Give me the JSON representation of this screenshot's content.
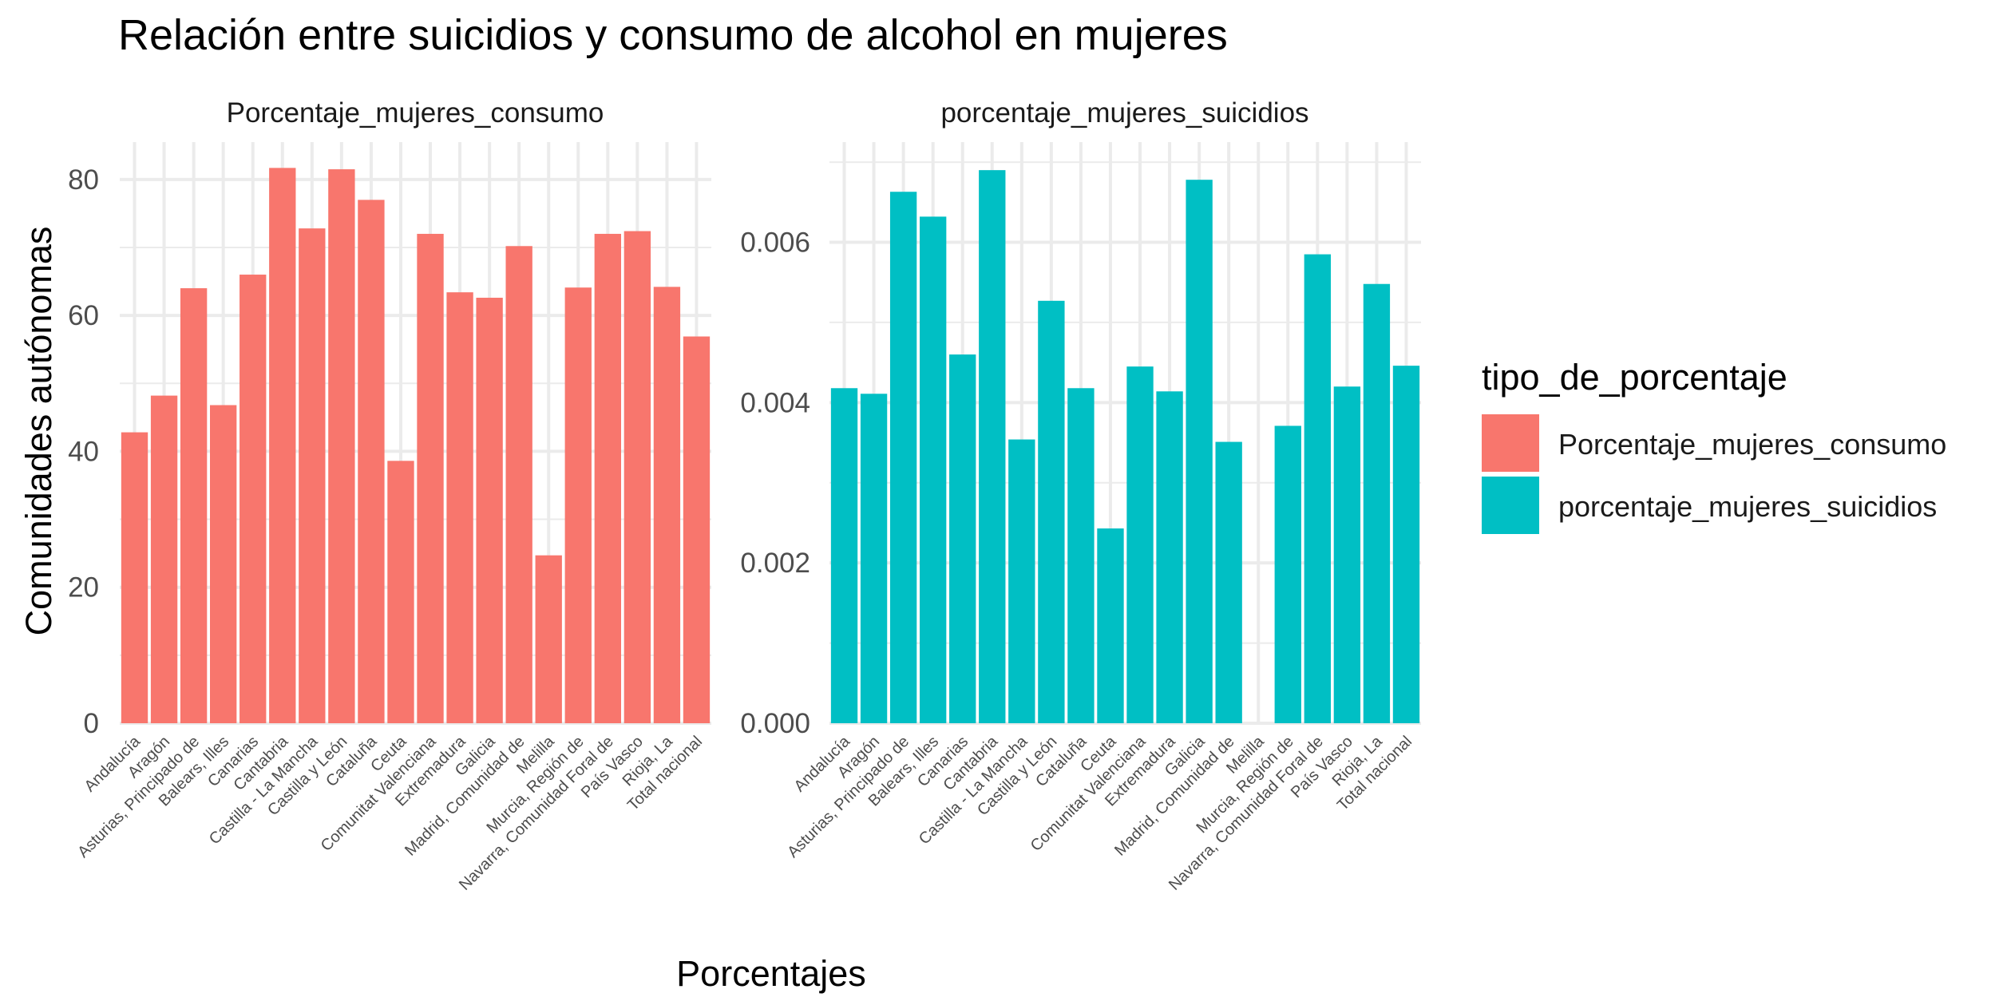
{
  "title": "Relación entre suicidios y consumo de alcohol en mujeres",
  "xlabel": "Porcentajes",
  "ylabel": "Comunidades autónomas",
  "legend": {
    "title": "tipo_de_porcentaje",
    "items": [
      {
        "label": "Porcentaje_mujeres_consumo",
        "color": "#F8766D"
      },
      {
        "label": "porcentaje_mujeres_suicidios",
        "color": "#00BFC4"
      }
    ]
  },
  "chart_data": [
    {
      "type": "bar",
      "facet_label": "Porcentaje_mujeres_consumo",
      "color": "#F8766D",
      "categories": [
        "Andalucía",
        "Aragón",
        "Asturias, Principado de",
        "Balears, Illes",
        "Canarias",
        "Cantabria",
        "Castilla - La Mancha",
        "Castilla y León",
        "Cataluña",
        "Ceuta",
        "Comunitat Valenciana",
        "Extremadura",
        "Galicia",
        "Madrid, Comunidad de",
        "Melilla",
        "Murcia, Región de",
        "Navarra, Comunidad Foral de",
        "País Vasco",
        "Rioja, La",
        "Total nacional"
      ],
      "values": [
        42.8,
        48.2,
        64.0,
        46.8,
        66.0,
        81.7,
        72.8,
        81.5,
        77.0,
        38.6,
        72.0,
        63.4,
        62.6,
        70.2,
        24.7,
        64.1,
        72.0,
        72.4,
        64.2,
        56.9
      ],
      "ylim": [
        0,
        85.5
      ],
      "ticks": [
        0,
        20,
        40,
        60,
        80
      ],
      "tick_labels": [
        "0",
        "20",
        "40",
        "60",
        "80"
      ],
      "grid": true
    },
    {
      "type": "bar",
      "facet_label": "porcentaje_mujeres_suicidios",
      "color": "#00BFC4",
      "categories": [
        "Andalucía",
        "Aragón",
        "Asturias, Principado de",
        "Balears, Illes",
        "Canarias",
        "Cantabria",
        "Castilla - La Mancha",
        "Castilla y León",
        "Cataluña",
        "Ceuta",
        "Comunitat Valenciana",
        "Extremadura",
        "Galicia",
        "Madrid, Comunidad de",
        "Melilla",
        "Murcia, Región de",
        "Navarra, Comunidad Foral de",
        "País Vasco",
        "Rioja, La",
        "Total nacional"
      ],
      "values": [
        0.00418,
        0.00411,
        0.00663,
        0.00632,
        0.0046,
        0.0069,
        0.00354,
        0.00527,
        0.00418,
        0.00243,
        0.00445,
        0.00414,
        0.00678,
        0.00351,
        0.0,
        0.00371,
        0.00585,
        0.0042,
        0.00548,
        0.00446
      ],
      "ylim": [
        0,
        0.00725
      ],
      "ticks": [
        0,
        0.002,
        0.004,
        0.006
      ],
      "tick_labels": [
        "0.000",
        "0.002",
        "0.004",
        "0.006"
      ],
      "grid": true
    }
  ]
}
